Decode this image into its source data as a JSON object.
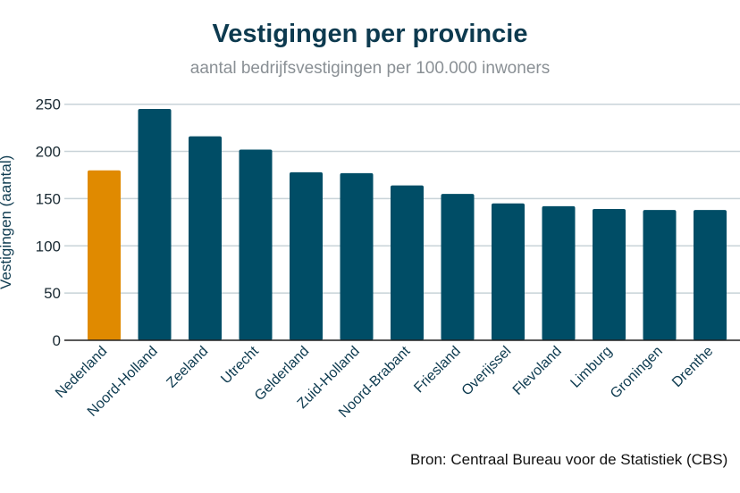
{
  "chart_data": {
    "type": "bar",
    "title": "Vestigingen per provincie",
    "subtitle": "aantal bedrijfsvestigingen per 100.000 inwoners",
    "xlabel": "",
    "ylabel": "Vestigingen (aantal)",
    "ylim": [
      0,
      250
    ],
    "yticks": [
      0,
      50,
      100,
      150,
      200,
      250
    ],
    "grid": true,
    "categories": [
      "Nederland",
      "Noord-Holland",
      "Zeeland",
      "Utrecht",
      "Gelderland",
      "Zuid-Holland",
      "Noord-Brabant",
      "Friesland",
      "Overijssel",
      "Flevoland",
      "Limburg",
      "Groningen",
      "Drenthe"
    ],
    "values": [
      180,
      245,
      216,
      202,
      178,
      177,
      164,
      155,
      145,
      142,
      139,
      138,
      138
    ],
    "colors": {
      "highlight": "#e08a00",
      "default": "#004d66",
      "grid": "#c8d3d8"
    },
    "highlight_category": "Nederland",
    "source": "Bron: Centraal Bureau voor de Statistiek (CBS)"
  }
}
